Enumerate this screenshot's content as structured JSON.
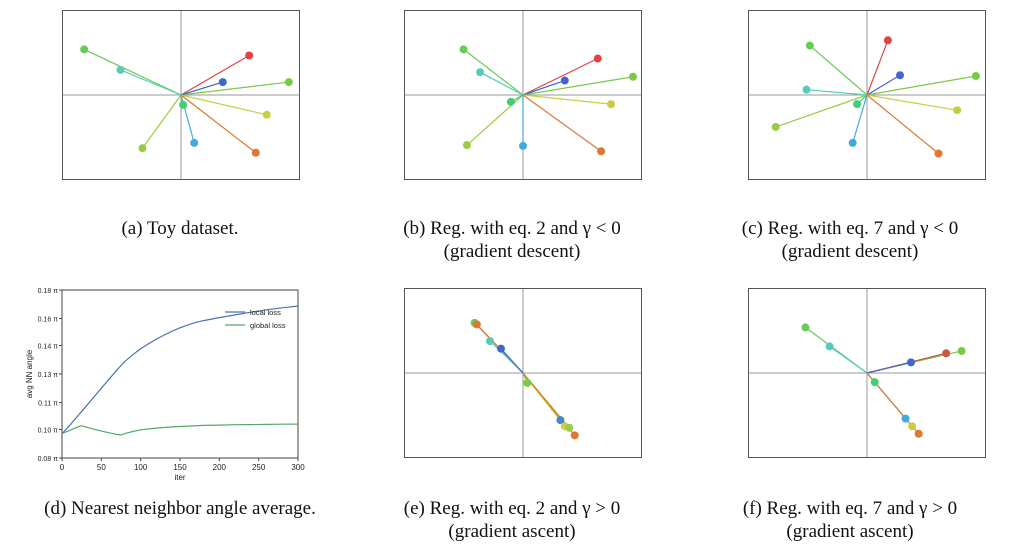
{
  "captions": {
    "a": [
      "(a) Toy dataset."
    ],
    "b": [
      "(b) Reg. with eq. 2 and γ < 0",
      "(gradient descent)"
    ],
    "c": [
      "(c) Reg. with eq. 7 and γ < 0",
      "(gradient descent)"
    ],
    "d": [
      "(d) Nearest neighbor angle average."
    ],
    "e": [
      "(e) Reg. with eq. 2 and γ > 0",
      "(gradient ascent)"
    ],
    "f": [
      "(f) Reg. with eq. 7 and γ > 0",
      "(gradient ascent)"
    ]
  },
  "chart_data": [
    {
      "id": "a",
      "type": "scatter",
      "title": "",
      "xlim": [
        -1,
        1
      ],
      "ylim": [
        -1,
        1
      ],
      "axes_lines": true,
      "points": [
        {
          "x": -0.88,
          "y": 0.6,
          "color": "#66cc55"
        },
        {
          "x": -0.55,
          "y": 0.33,
          "color": "#55ccbb"
        },
        {
          "x": 0.98,
          "y": 0.17,
          "color": "#77cc44"
        },
        {
          "x": 0.62,
          "y": 0.52,
          "color": "#dd4444"
        },
        {
          "x": 0.38,
          "y": 0.17,
          "color": "#4466cc"
        },
        {
          "x": 0.78,
          "y": -0.26,
          "color": "#cccc44"
        },
        {
          "x": 0.68,
          "y": -0.76,
          "color": "#dd7733"
        },
        {
          "x": 0.12,
          "y": -0.63,
          "color": "#44aadd"
        },
        {
          "x": -0.35,
          "y": -0.7,
          "color": "#99cc44"
        },
        {
          "x": 0.02,
          "y": -0.13,
          "color": "#44cc77"
        }
      ]
    },
    {
      "id": "b",
      "type": "scatter",
      "title": "",
      "xlim": [
        -1,
        1
      ],
      "ylim": [
        -1,
        1
      ],
      "axes_lines": true,
      "points": [
        {
          "x": -0.54,
          "y": 0.6,
          "color": "#66cc55"
        },
        {
          "x": -0.39,
          "y": 0.3,
          "color": "#55ccbb"
        },
        {
          "x": 1.0,
          "y": 0.24,
          "color": "#77cc44"
        },
        {
          "x": 0.68,
          "y": 0.48,
          "color": "#dd4444"
        },
        {
          "x": 0.38,
          "y": 0.19,
          "color": "#4466cc"
        },
        {
          "x": 0.8,
          "y": -0.12,
          "color": "#cccc44"
        },
        {
          "x": 0.71,
          "y": -0.74,
          "color": "#dd7733"
        },
        {
          "x": 0.0,
          "y": -0.67,
          "color": "#44aadd"
        },
        {
          "x": -0.51,
          "y": -0.66,
          "color": "#99cc44"
        },
        {
          "x": -0.11,
          "y": -0.09,
          "color": "#44cc77"
        }
      ]
    },
    {
      "id": "c",
      "type": "scatter",
      "title": "",
      "xlim": [
        -1,
        1
      ],
      "ylim": [
        -1,
        1
      ],
      "axes_lines": true,
      "points": [
        {
          "x": -0.52,
          "y": 0.65,
          "color": "#66cc55"
        },
        {
          "x": -0.55,
          "y": 0.07,
          "color": "#55ccbb"
        },
        {
          "x": 0.99,
          "y": 0.25,
          "color": "#77cc44"
        },
        {
          "x": 0.19,
          "y": 0.72,
          "color": "#dd4444"
        },
        {
          "x": 0.3,
          "y": 0.26,
          "color": "#4466cc"
        },
        {
          "x": 0.82,
          "y": -0.2,
          "color": "#cccc44"
        },
        {
          "x": 0.65,
          "y": -0.77,
          "color": "#dd7733"
        },
        {
          "x": -0.13,
          "y": -0.63,
          "color": "#44aadd"
        },
        {
          "x": -0.83,
          "y": -0.42,
          "color": "#99cc44"
        },
        {
          "x": -0.09,
          "y": -0.12,
          "color": "#44cc77"
        }
      ]
    },
    {
      "id": "d",
      "type": "line",
      "title": "",
      "xlabel": "iter",
      "ylabel": "avg NN angle",
      "xlim": [
        0,
        300
      ],
      "ylim": [
        0.08,
        0.18
      ],
      "xticks": [
        "0",
        "50",
        "100",
        "150",
        "200",
        "250",
        "300"
      ],
      "xtick_values": [
        0,
        50,
        100,
        150,
        200,
        250,
        300
      ],
      "yticks": [
        "0.08 π",
        "0.10 π",
        "0.11 π",
        "0.13 π",
        "0.14 π",
        "0.16 π",
        "0.18 π"
      ],
      "ytick_values": [
        0.08,
        0.097,
        0.113,
        0.13,
        0.147,
        0.163,
        0.18
      ],
      "legend_position": "top-right",
      "series": [
        {
          "name": "local loss",
          "color": "#4c72b0",
          "x": [
            0,
            10,
            20,
            30,
            40,
            50,
            60,
            70,
            80,
            90,
            100,
            110,
            120,
            130,
            140,
            150,
            160,
            170,
            180,
            200,
            220,
            240,
            260,
            280,
            300
          ],
          "y": [
            0.0945,
            0.0995,
            0.105,
            0.1105,
            0.116,
            0.1215,
            0.127,
            0.1325,
            0.1375,
            0.1415,
            0.145,
            0.148,
            0.1508,
            0.1532,
            0.1555,
            0.1575,
            0.1592,
            0.1607,
            0.1618,
            0.1636,
            0.1652,
            0.1668,
            0.1682,
            0.1694,
            0.1705
          ]
        },
        {
          "name": "global loss",
          "color": "#55a868",
          "x": [
            0,
            10,
            20,
            25,
            30,
            40,
            50,
            60,
            70,
            75,
            80,
            90,
            100,
            120,
            140,
            160,
            180,
            200,
            220,
            240,
            260,
            280,
            300
          ],
          "y": [
            0.0945,
            0.0965,
            0.0985,
            0.0992,
            0.0985,
            0.0972,
            0.096,
            0.095,
            0.094,
            0.0937,
            0.0945,
            0.0958,
            0.0968,
            0.0978,
            0.0985,
            0.099,
            0.0994,
            0.0996,
            0.0998,
            0.0999,
            0.1,
            0.1001,
            0.1002
          ]
        }
      ]
    },
    {
      "id": "e",
      "type": "scatter",
      "title": "",
      "xlim": [
        -1,
        1
      ],
      "ylim": [
        -1,
        1
      ],
      "axes_lines": true,
      "points": [
        {
          "x": -0.44,
          "y": 0.66,
          "color": "#66cc55"
        },
        {
          "x": -0.42,
          "y": 0.64,
          "color": "#dd7733"
        },
        {
          "x": -0.3,
          "y": 0.42,
          "color": "#55ccbb"
        },
        {
          "x": -0.2,
          "y": 0.32,
          "color": "#4466cc"
        },
        {
          "x": 0.04,
          "y": -0.13,
          "color": "#77cc44"
        },
        {
          "x": 0.34,
          "y": -0.62,
          "color": "#4488cc"
        },
        {
          "x": 0.38,
          "y": -0.7,
          "color": "#cccc44"
        },
        {
          "x": 0.42,
          "y": -0.72,
          "color": "#99cc44"
        },
        {
          "x": 0.47,
          "y": -0.82,
          "color": "#dd7733"
        }
      ]
    },
    {
      "id": "f",
      "type": "scatter",
      "title": "",
      "xlim": [
        -1,
        1
      ],
      "ylim": [
        -1,
        1
      ],
      "axes_lines": true,
      "points": [
        {
          "x": -0.56,
          "y": 0.6,
          "color": "#66cc55"
        },
        {
          "x": -0.34,
          "y": 0.35,
          "color": "#55ccbb"
        },
        {
          "x": 0.86,
          "y": 0.29,
          "color": "#77cc44"
        },
        {
          "x": 0.72,
          "y": 0.26,
          "color": "#cc5544"
        },
        {
          "x": 0.4,
          "y": 0.14,
          "color": "#4466cc"
        },
        {
          "x": 0.07,
          "y": -0.12,
          "color": "#44cc77"
        },
        {
          "x": 0.35,
          "y": -0.6,
          "color": "#44aadd"
        },
        {
          "x": 0.41,
          "y": -0.7,
          "color": "#cccc44"
        },
        {
          "x": 0.47,
          "y": -0.8,
          "color": "#dd7733"
        }
      ]
    }
  ]
}
